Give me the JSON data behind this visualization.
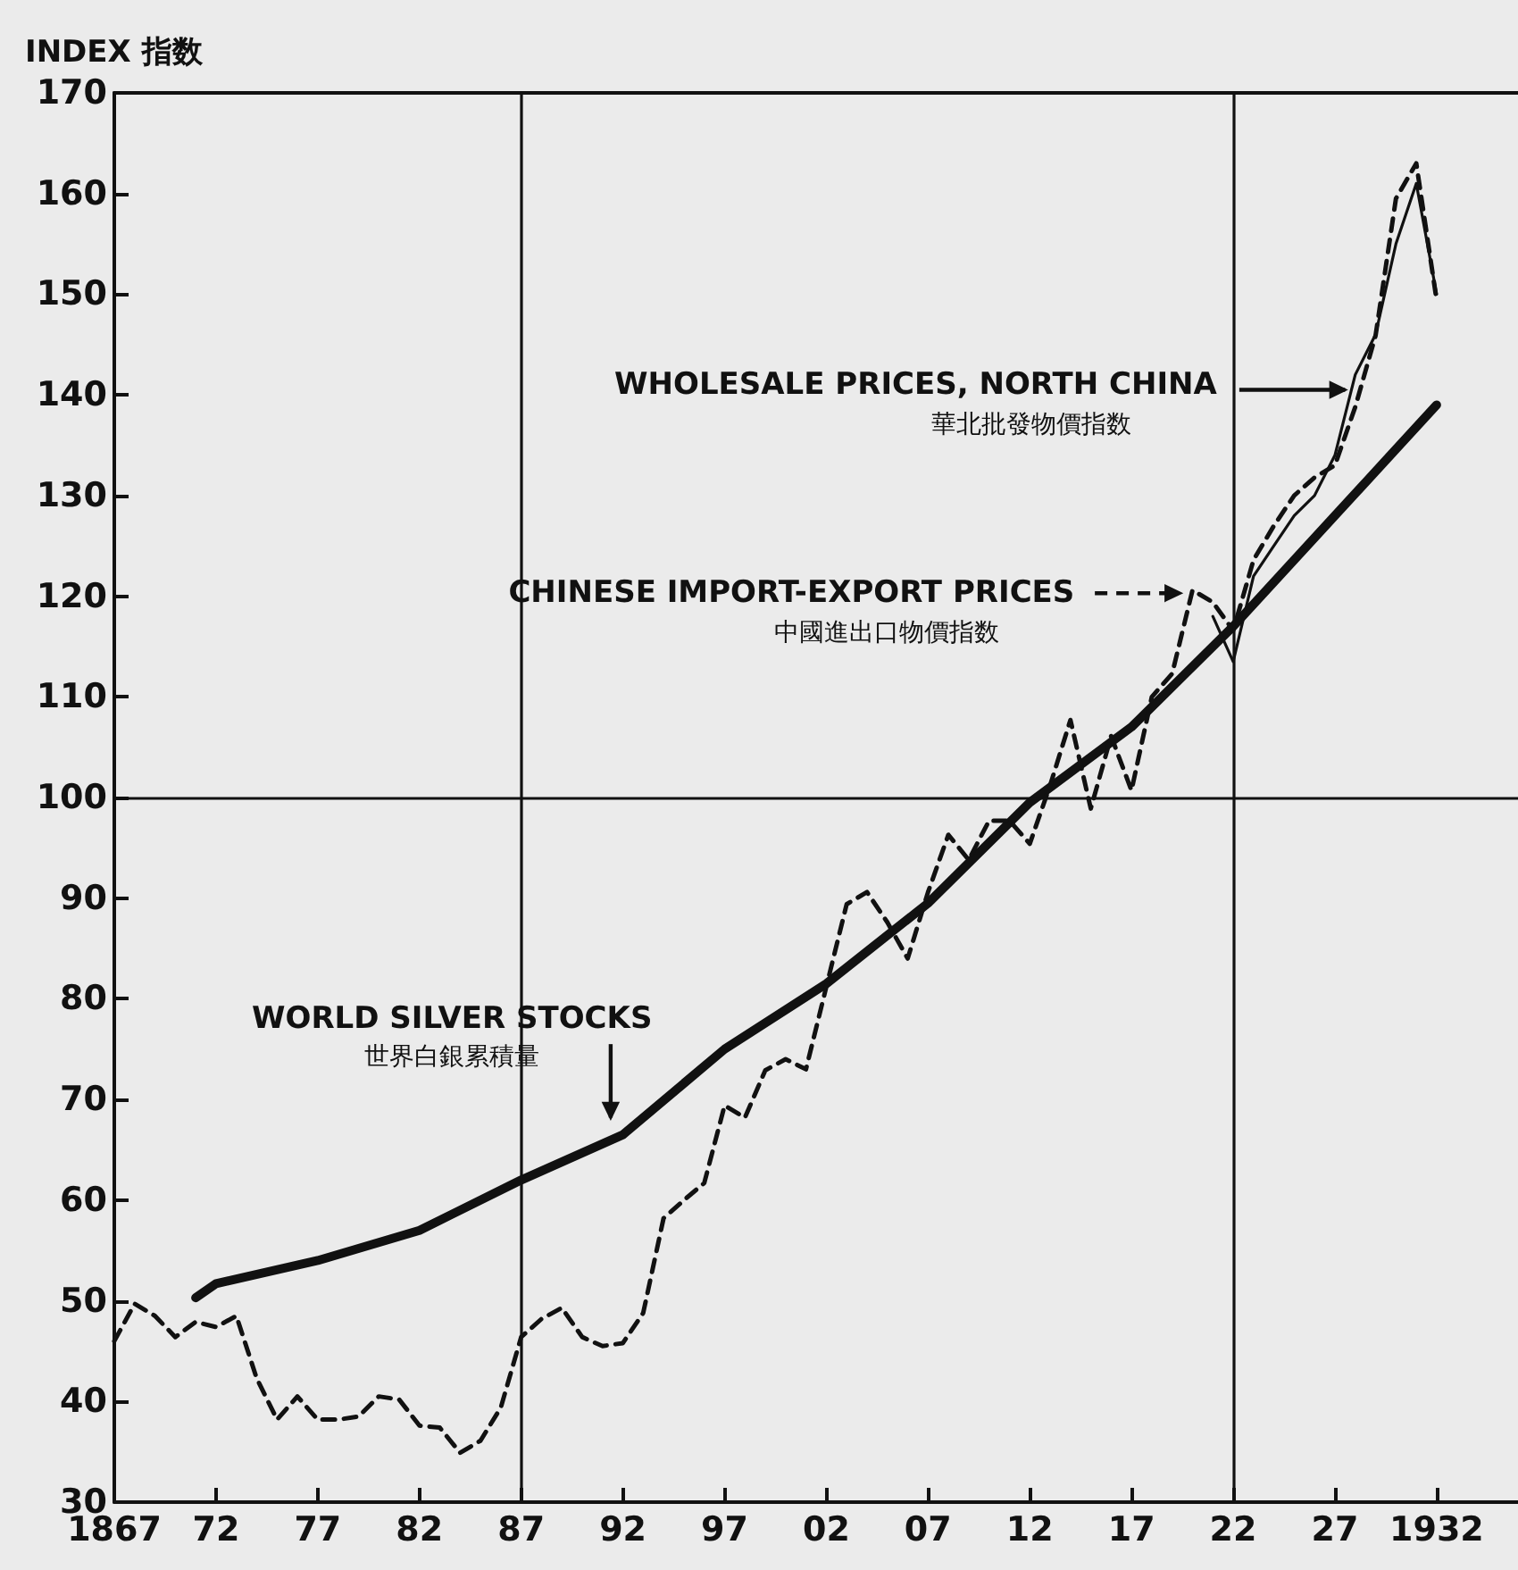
{
  "chart_data": {
    "type": "line",
    "ylabel": "INDEX 指数",
    "x": [
      1867,
      1868,
      1869,
      1870,
      1871,
      1872,
      1873,
      1874,
      1875,
      1876,
      1877,
      1878,
      1879,
      1880,
      1881,
      1882,
      1883,
      1884,
      1885,
      1886,
      1887,
      1888,
      1889,
      1890,
      1891,
      1892,
      1893,
      1894,
      1895,
      1896,
      1897,
      1898,
      1899,
      1900,
      1901,
      1902,
      1903,
      1904,
      1905,
      1906,
      1907,
      1908,
      1909,
      1910,
      1911,
      1912,
      1913,
      1914,
      1915,
      1916,
      1917,
      1918,
      1919,
      1920,
      1921,
      1922,
      1923,
      1924,
      1925,
      1926,
      1927,
      1928,
      1929,
      1930,
      1931,
      1932
    ],
    "series": [
      {
        "name": "WORLD SILVER STOCKS\n世界白銀累積量",
        "color": "#111111",
        "line_style": "solid",
        "x": [
          1871,
          1872,
          1877,
          1882,
          1887,
          1892,
          1897,
          1902,
          1907,
          1912,
          1917,
          1922,
          1927,
          1932
        ],
        "values": [
          50.3,
          51.7,
          54,
          57,
          62,
          66.5,
          75,
          81.5,
          89.5,
          99.5,
          107,
          117,
          128,
          139
        ]
      },
      {
        "name": "CHINESE IMPORT-EXPORT PRICES\n中國進出口物價指数",
        "color": "#111111",
        "line_style": "dashed",
        "values": [
          46,
          49.7,
          48.5,
          46.4,
          47.9,
          47.4,
          48.5,
          42.3,
          38.2,
          40.5,
          38.2,
          38.2,
          38.5,
          40.5,
          40.2,
          37.6,
          37.4,
          34.9,
          36.1,
          39.4,
          46.4,
          48.2,
          49.3,
          46.4,
          45.5,
          45.8,
          48.8,
          58.2,
          60,
          61.7,
          69.4,
          68.2,
          72.9,
          74,
          73,
          81.2,
          89.4,
          90.6,
          87.6,
          84,
          90.6,
          96.3,
          93.8,
          97.7,
          97.7,
          95.4,
          101.2,
          107.7,
          98.9,
          106.1,
          100.7,
          110,
          112.3,
          120.6,
          119.4,
          116.6,
          123.6,
          127,
          130,
          131.8,
          133,
          138.8,
          145.9,
          159.5,
          163,
          149.4
        ]
      },
      {
        "name": "WHOLESALE PRICES, NORTH CHINA\n華北批發物價指数",
        "color": "#111111",
        "line_style": "solid",
        "x": [
          1921,
          1922,
          1923,
          1924,
          1925,
          1926,
          1927,
          1928,
          1929,
          1930,
          1931,
          1932
        ],
        "values": [
          118,
          113.5,
          122,
          125,
          128,
          130,
          134,
          142,
          146,
          155,
          161,
          150
        ]
      }
    ],
    "xlim": [
      1867,
      1936
    ],
    "xticks": [
      {
        "value": 1867,
        "label": "1867"
      },
      {
        "value": 1872,
        "label": "72"
      },
      {
        "value": 1877,
        "label": "77"
      },
      {
        "value": 1882,
        "label": "82"
      },
      {
        "value": 1887,
        "label": "87"
      },
      {
        "value": 1892,
        "label": "92"
      },
      {
        "value": 1897,
        "label": "97"
      },
      {
        "value": 1902,
        "label": "02"
      },
      {
        "value": 1907,
        "label": "07"
      },
      {
        "value": 1912,
        "label": "12"
      },
      {
        "value": 1917,
        "label": "17"
      },
      {
        "value": 1922,
        "label": "22"
      },
      {
        "value": 1927,
        "label": "27"
      },
      {
        "value": 1932,
        "label": "1932"
      }
    ],
    "ylim": [
      30,
      170
    ],
    "yticks": [
      30,
      40,
      50,
      60,
      70,
      80,
      90,
      100,
      110,
      120,
      130,
      140,
      150,
      160,
      170
    ],
    "ref_lines": [
      {
        "axis": "x",
        "value": 1887
      },
      {
        "axis": "x",
        "value": 1922
      },
      {
        "axis": "y",
        "value": 100
      }
    ],
    "grid": false,
    "legend": "right",
    "marker": "none"
  }
}
